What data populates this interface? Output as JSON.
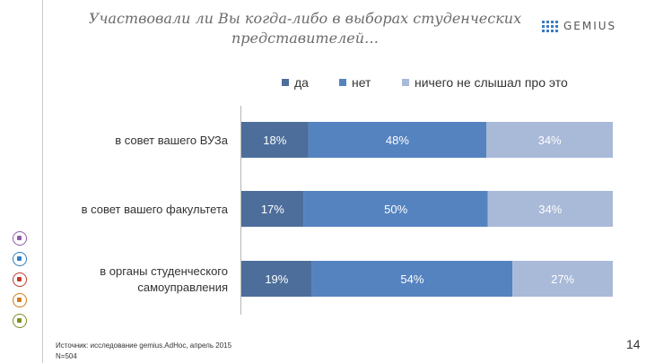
{
  "title": "Участвовали ли Вы когда-либо в выборах студенческих представителей…",
  "logo": {
    "text": "GEMIUS"
  },
  "chart_data": {
    "type": "bar",
    "orientation": "horizontal",
    "stacked": true,
    "categories": [
      "в совет вашего ВУЗа",
      "в совет вашего факультета",
      "в органы студенческого самоуправления"
    ],
    "series": [
      {
        "name": "да",
        "values": [
          18,
          17,
          19
        ],
        "labels": [
          "18%",
          "17%",
          "19%"
        ],
        "color": "#4d6e9b"
      },
      {
        "name": "нет",
        "values": [
          48,
          50,
          54
        ],
        "labels": [
          "48%",
          "50%",
          "54%"
        ],
        "color": "#5583c0"
      },
      {
        "name": "ничего не слышал про это",
        "values": [
          34,
          34,
          27
        ],
        "labels": [
          "34%",
          "34%",
          "27%"
        ],
        "color": "#a9b9d8"
      }
    ],
    "legend_position": "top",
    "grid": false
  },
  "source": {
    "line1": "Источник: исследование gemius.AdHoc, апрель 2015",
    "line2": "N=504"
  },
  "page_number": "14",
  "side_icons": [
    {
      "name": "people-icon",
      "color": "#8e5ca8"
    },
    {
      "name": "globe-icon",
      "color": "#2f7fc1"
    },
    {
      "name": "cart-icon",
      "color": "#c0392b"
    },
    {
      "name": "tools-icon",
      "color": "#d07a1a"
    },
    {
      "name": "phone-icon",
      "color": "#7a8f1f"
    }
  ]
}
